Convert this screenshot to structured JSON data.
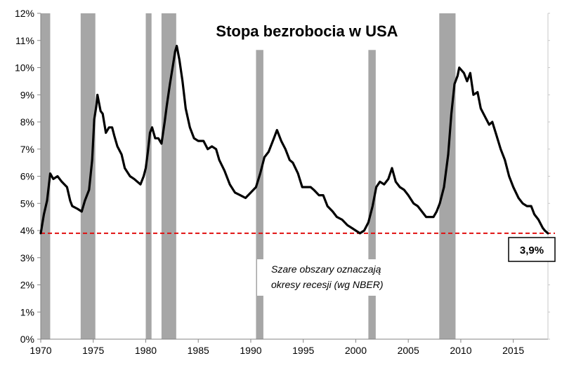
{
  "chart_data": {
    "type": "line",
    "title": "Stopa bezrobocia w USA",
    "xlabel": "",
    "ylabel": "",
    "xlim": [
      1970,
      2018.3
    ],
    "ylim": [
      0,
      12
    ],
    "x_ticks": [
      1970,
      1975,
      1980,
      1985,
      1990,
      1995,
      2000,
      2005,
      2010,
      2015
    ],
    "y_ticks": [
      0,
      1,
      2,
      3,
      4,
      5,
      6,
      7,
      8,
      9,
      10,
      11,
      12
    ],
    "y_tick_labels": [
      "0%",
      "1%",
      "2%",
      "3%",
      "4%",
      "5%",
      "6%",
      "7%",
      "8%",
      "9%",
      "10%",
      "11%",
      "12%"
    ],
    "grid": false,
    "legend": "none",
    "series": [
      {
        "name": "Stopa bezrobocia",
        "color": "#000000",
        "points": [
          [
            1970.0,
            3.9
          ],
          [
            1970.3,
            4.6
          ],
          [
            1970.6,
            5.1
          ],
          [
            1970.9,
            6.1
          ],
          [
            1971.2,
            5.9
          ],
          [
            1971.6,
            6.0
          ],
          [
            1972.0,
            5.8
          ],
          [
            1972.5,
            5.6
          ],
          [
            1972.8,
            5.1
          ],
          [
            1973.0,
            4.9
          ],
          [
            1973.5,
            4.8
          ],
          [
            1973.9,
            4.7
          ],
          [
            1974.2,
            5.1
          ],
          [
            1974.6,
            5.5
          ],
          [
            1974.9,
            6.6
          ],
          [
            1975.1,
            8.1
          ],
          [
            1975.3,
            8.6
          ],
          [
            1975.4,
            9.0
          ],
          [
            1975.7,
            8.4
          ],
          [
            1975.9,
            8.3
          ],
          [
            1976.2,
            7.6
          ],
          [
            1976.5,
            7.8
          ],
          [
            1976.8,
            7.8
          ],
          [
            1977.0,
            7.5
          ],
          [
            1977.3,
            7.1
          ],
          [
            1977.7,
            6.8
          ],
          [
            1978.0,
            6.3
          ],
          [
            1978.5,
            6.0
          ],
          [
            1978.9,
            5.9
          ],
          [
            1979.2,
            5.8
          ],
          [
            1979.5,
            5.7
          ],
          [
            1979.8,
            6.0
          ],
          [
            1980.0,
            6.3
          ],
          [
            1980.2,
            6.9
          ],
          [
            1980.4,
            7.6
          ],
          [
            1980.6,
            7.8
          ],
          [
            1980.9,
            7.4
          ],
          [
            1981.2,
            7.4
          ],
          [
            1981.5,
            7.2
          ],
          [
            1981.8,
            8.0
          ],
          [
            1982.0,
            8.6
          ],
          [
            1982.3,
            9.4
          ],
          [
            1982.6,
            10.1
          ],
          [
            1982.8,
            10.6
          ],
          [
            1982.95,
            10.8
          ],
          [
            1983.2,
            10.3
          ],
          [
            1983.5,
            9.5
          ],
          [
            1983.8,
            8.5
          ],
          [
            1984.2,
            7.8
          ],
          [
            1984.6,
            7.4
          ],
          [
            1985.0,
            7.3
          ],
          [
            1985.5,
            7.3
          ],
          [
            1985.9,
            7.0
          ],
          [
            1986.3,
            7.1
          ],
          [
            1986.7,
            7.0
          ],
          [
            1987.0,
            6.6
          ],
          [
            1987.5,
            6.2
          ],
          [
            1988.0,
            5.7
          ],
          [
            1988.5,
            5.4
          ],
          [
            1989.0,
            5.3
          ],
          [
            1989.5,
            5.2
          ],
          [
            1990.0,
            5.4
          ],
          [
            1990.5,
            5.6
          ],
          [
            1990.9,
            6.1
          ],
          [
            1991.3,
            6.7
          ],
          [
            1991.7,
            6.9
          ],
          [
            1992.2,
            7.4
          ],
          [
            1992.5,
            7.7
          ],
          [
            1992.9,
            7.3
          ],
          [
            1993.3,
            7.0
          ],
          [
            1993.7,
            6.6
          ],
          [
            1994.0,
            6.5
          ],
          [
            1994.5,
            6.1
          ],
          [
            1994.9,
            5.6
          ],
          [
            1995.3,
            5.6
          ],
          [
            1995.7,
            5.6
          ],
          [
            1996.0,
            5.5
          ],
          [
            1996.5,
            5.3
          ],
          [
            1996.9,
            5.3
          ],
          [
            1997.3,
            4.9
          ],
          [
            1997.8,
            4.7
          ],
          [
            1998.2,
            4.5
          ],
          [
            1998.7,
            4.4
          ],
          [
            1999.2,
            4.2
          ],
          [
            1999.6,
            4.1
          ],
          [
            2000.0,
            4.0
          ],
          [
            2000.4,
            3.9
          ],
          [
            2000.8,
            4.0
          ],
          [
            2001.2,
            4.3
          ],
          [
            2001.6,
            4.9
          ],
          [
            2001.95,
            5.6
          ],
          [
            2002.3,
            5.8
          ],
          [
            2002.7,
            5.7
          ],
          [
            2003.1,
            5.9
          ],
          [
            2003.45,
            6.3
          ],
          [
            2003.8,
            5.8
          ],
          [
            2004.2,
            5.6
          ],
          [
            2004.6,
            5.5
          ],
          [
            2005.0,
            5.3
          ],
          [
            2005.5,
            5.0
          ],
          [
            2005.9,
            4.9
          ],
          [
            2006.3,
            4.7
          ],
          [
            2006.7,
            4.5
          ],
          [
            2007.0,
            4.5
          ],
          [
            2007.4,
            4.5
          ],
          [
            2007.7,
            4.7
          ],
          [
            2008.0,
            5.0
          ],
          [
            2008.4,
            5.6
          ],
          [
            2008.8,
            6.8
          ],
          [
            2009.1,
            8.3
          ],
          [
            2009.4,
            9.4
          ],
          [
            2009.7,
            9.7
          ],
          [
            2009.85,
            10.0
          ],
          [
            2010.3,
            9.8
          ],
          [
            2010.6,
            9.5
          ],
          [
            2010.9,
            9.8
          ],
          [
            2011.2,
            9.0
          ],
          [
            2011.6,
            9.1
          ],
          [
            2011.9,
            8.5
          ],
          [
            2012.3,
            8.2
          ],
          [
            2012.7,
            7.9
          ],
          [
            2013.0,
            8.0
          ],
          [
            2013.4,
            7.5
          ],
          [
            2013.8,
            7.0
          ],
          [
            2014.2,
            6.6
          ],
          [
            2014.6,
            6.0
          ],
          [
            2015.0,
            5.6
          ],
          [
            2015.5,
            5.2
          ],
          [
            2015.9,
            5.0
          ],
          [
            2016.3,
            4.9
          ],
          [
            2016.7,
            4.9
          ],
          [
            2017.0,
            4.6
          ],
          [
            2017.4,
            4.4
          ],
          [
            2017.8,
            4.1
          ],
          [
            2018.0,
            4.0
          ],
          [
            2018.3,
            3.9
          ]
        ]
      }
    ],
    "recessions": [
      [
        1969.95,
        1970.9
      ],
      [
        1973.8,
        1975.2
      ],
      [
        1980.0,
        1980.55
      ],
      [
        1981.5,
        1982.9
      ],
      [
        1990.5,
        1991.2
      ],
      [
        2001.2,
        2001.9
      ],
      [
        2007.95,
        2009.5
      ]
    ],
    "reference_line": {
      "value": 3.9,
      "color": "#e01010",
      "style": "dashed"
    },
    "annotations": {
      "current_value_label": "3,9%",
      "note_line1": "Szare obszary oznaczają",
      "note_line2": "okresy recesji (wg NBER)"
    },
    "colors": {
      "line": "#000000",
      "recession": "#a6a6a6",
      "axis": "#868686",
      "reference": "#e01010"
    }
  }
}
